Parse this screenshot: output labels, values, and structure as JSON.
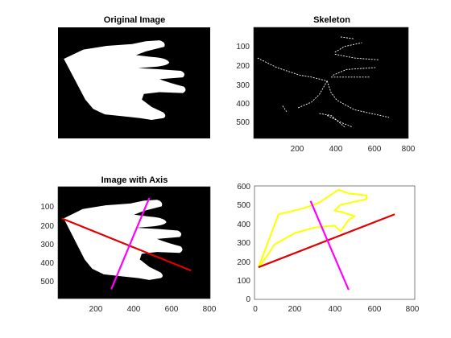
{
  "chart_data": [
    {
      "type": "image",
      "title": "Original Image",
      "axis_visible": false,
      "background": "#000000",
      "foreground": "#ffffff",
      "content": "white hand silhouette on black, pixel coordinates",
      "xlim": [
        0,
        780
      ],
      "ylim": [
        0,
        600
      ]
    },
    {
      "type": "image",
      "title": "Skeleton",
      "background": "#000000",
      "foreground": "#ffffff",
      "xlim": [
        0,
        800
      ],
      "ylim": [
        0,
        580
      ],
      "y_reversed": true,
      "xticks": [
        "200",
        "400",
        "600",
        "800"
      ],
      "yticks": [
        "100",
        "200",
        "300",
        "400",
        "500"
      ],
      "skeleton_lines": [
        [
          [
            20,
            160
          ],
          [
            120,
            210
          ],
          [
            240,
            250
          ],
          [
            300,
            260
          ],
          [
            380,
            280
          ]
        ],
        [
          [
            380,
            280
          ],
          [
            340,
            350
          ],
          [
            300,
            390
          ],
          [
            230,
            420
          ]
        ],
        [
          [
            380,
            280
          ],
          [
            400,
            340
          ],
          [
            430,
            380
          ],
          [
            520,
            430
          ],
          [
            700,
            470
          ]
        ],
        [
          [
            400,
            260
          ],
          [
            600,
            260
          ]
        ],
        [
          [
            410,
            250
          ],
          [
            480,
            220
          ],
          [
            630,
            210
          ]
        ],
        [
          [
            420,
            130
          ],
          [
            470,
            100
          ],
          [
            560,
            80
          ]
        ],
        [
          [
            420,
            140
          ],
          [
            520,
            160
          ],
          [
            650,
            170
          ]
        ],
        [
          [
            450,
            50
          ],
          [
            520,
            60
          ]
        ],
        [
          [
            340,
            450
          ],
          [
            400,
            460
          ],
          [
            470,
            520
          ]
        ],
        [
          [
            380,
            460
          ],
          [
            460,
            500
          ],
          [
            510,
            520
          ]
        ],
        [
          [
            150,
            410
          ],
          [
            170,
            440
          ]
        ]
      ]
    },
    {
      "type": "image",
      "title": "Image with Axis",
      "background": "#000000",
      "foreground": "#ffffff",
      "xlim": [
        0,
        800
      ],
      "ylim": [
        0,
        600
      ],
      "y_reversed": true,
      "xticks": [
        "200",
        "400",
        "600",
        "800"
      ],
      "yticks": [
        "100",
        "200",
        "300",
        "400",
        "500"
      ],
      "major_axis": {
        "color": "#e00000",
        "from": [
          20,
          170
        ],
        "to": [
          700,
          450
        ]
      },
      "minor_axis": {
        "color": "#ff00ff",
        "from": [
          480,
          60
        ],
        "to": [
          280,
          550
        ]
      }
    },
    {
      "type": "line",
      "title": "",
      "xlim": [
        0,
        800
      ],
      "ylim": [
        0,
        600
      ],
      "xticks": [
        "0",
        "200",
        "400",
        "600",
        "800"
      ],
      "yticks": [
        "0",
        "100",
        "200",
        "300",
        "400",
        "500",
        "600"
      ],
      "series": [
        {
          "color": "#ffff00",
          "points": [
            [
              20,
              170
            ],
            [
              50,
              210
            ],
            [
              100,
              290
            ],
            [
              200,
              350
            ],
            [
              300,
              380
            ],
            [
              400,
              390
            ],
            [
              430,
              360
            ],
            [
              470,
              420
            ],
            [
              500,
              440
            ],
            [
              440,
              460
            ],
            [
              400,
              470
            ],
            [
              430,
              500
            ],
            [
              560,
              530
            ],
            [
              560,
              550
            ],
            [
              470,
              560
            ],
            [
              420,
              580
            ],
            [
              320,
              510
            ],
            [
              240,
              480
            ],
            [
              120,
              450
            ],
            [
              20,
              170
            ]
          ]
        },
        {
          "color": "#e00000",
          "points": [
            [
              20,
              170
            ],
            [
              700,
              450
            ]
          ]
        },
        {
          "color": "#ff00ff",
          "points": [
            [
              280,
              520
            ],
            [
              470,
              50
            ]
          ]
        }
      ]
    }
  ]
}
